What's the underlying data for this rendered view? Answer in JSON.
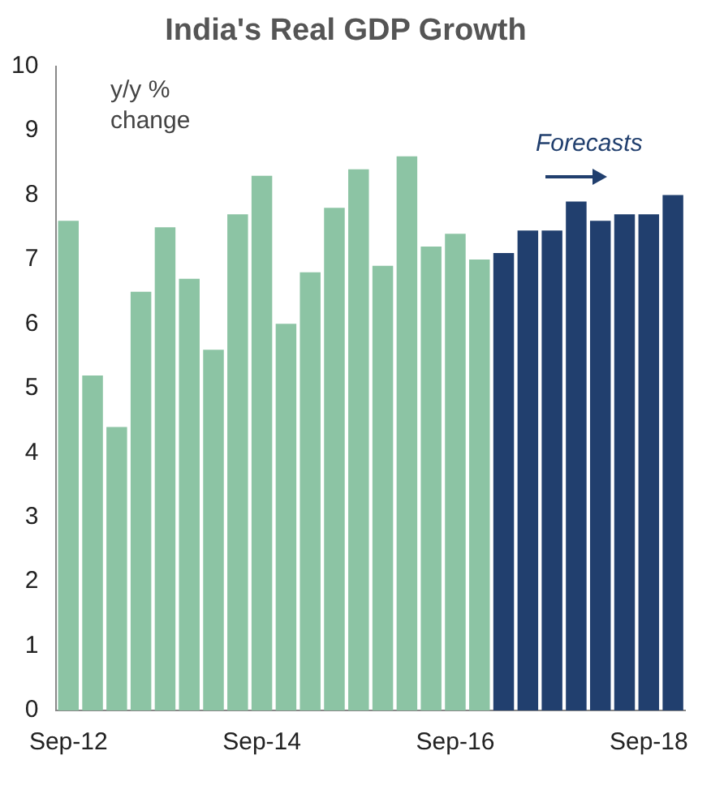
{
  "chart_data": {
    "type": "bar",
    "title": "India's Real GDP Growth",
    "categories": [
      "Sep-12",
      null,
      null,
      null,
      null,
      null,
      null,
      null,
      "Sep-14",
      null,
      null,
      null,
      null,
      null,
      null,
      null,
      "Sep-16",
      null,
      null,
      null,
      null,
      null,
      null,
      null,
      "Sep-18",
      null
    ],
    "values": [
      7.6,
      5.2,
      4.4,
      6.5,
      7.5,
      6.7,
      5.6,
      7.7,
      8.3,
      6.0,
      6.8,
      7.8,
      8.4,
      6.9,
      8.6,
      7.2,
      7.4,
      7.0,
      7.1,
      7.45,
      7.45,
      7.9,
      7.6,
      7.7,
      7.7,
      8.0
    ],
    "colors": [
      "#8cc4a4",
      "#8cc4a4",
      "#8cc4a4",
      "#8cc4a4",
      "#8cc4a4",
      "#8cc4a4",
      "#8cc4a4",
      "#8cc4a4",
      "#8cc4a4",
      "#8cc4a4",
      "#8cc4a4",
      "#8cc4a4",
      "#8cc4a4",
      "#8cc4a4",
      "#8cc4a4",
      "#8cc4a4",
      "#8cc4a4",
      "#8cc4a4",
      "#213f6e",
      "#213f6e",
      "#213f6e",
      "#213f6e",
      "#213f6e",
      "#213f6e",
      "#213f6e",
      "#213f6e"
    ],
    "ylim": [
      0,
      10
    ],
    "yticks": [
      0,
      1,
      2,
      3,
      4,
      5,
      6,
      7,
      8,
      9,
      10
    ],
    "grid": false,
    "legend": false,
    "annotations": [
      "y/y % change",
      "Forecasts"
    ]
  }
}
